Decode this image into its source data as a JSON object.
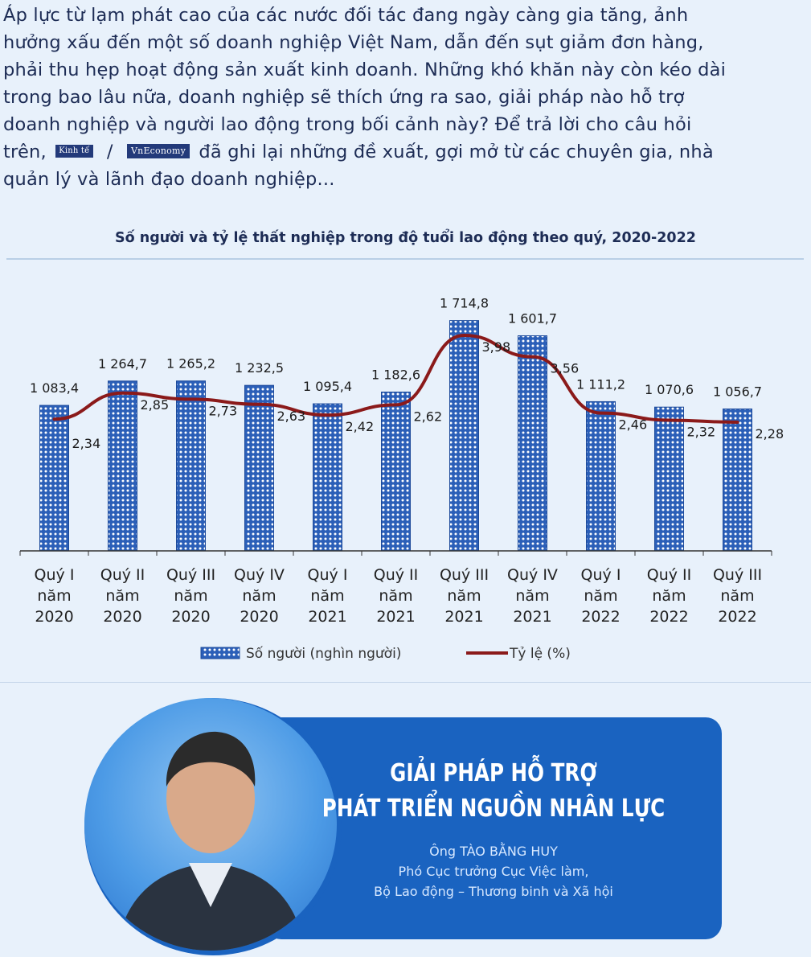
{
  "intro": {
    "line1": "Áp lực từ lạm phát cao của các nước đối tác đang ngày càng gia tăng, ảnh",
    "line2": "hưởng xấu đến một số doanh nghiệp Việt Nam, dẫn đến sụt giảm đơn hàng,",
    "line3": "phải thu hẹp hoạt động sản xuất kinh doanh. Những khó khăn này còn kéo dài",
    "line4": "trong bao lâu nữa, doanh nghiệp sẽ thích ứng ra sao, giải pháp nào hỗ trợ",
    "line5": "doanh nghiệp và người lao động trong bối cảnh này? Để trả lời cho câu hỏi",
    "line6_pre": "trên,",
    "badge_kt": "Kinh tế",
    "separator": "/",
    "badge_vne": "VnEconomy",
    "line6_post": "đã ghi lại những đề xuất, gợi mở từ các chuyên gia, nhà",
    "line7": "quản lý và lãnh đạo doanh nghiệp..."
  },
  "chart_data": {
    "type": "bar",
    "title": "Số người và tỷ lệ thất nghiệp trong độ tuổi lao động theo quý, 2020-2022",
    "categories": [
      [
        "Quý I",
        "năm",
        "2020"
      ],
      [
        "Quý II",
        "năm",
        "2020"
      ],
      [
        "Quý III",
        "năm",
        "2020"
      ],
      [
        "Quý IV",
        "năm",
        "2020"
      ],
      [
        "Quý I",
        "năm",
        "2021"
      ],
      [
        "Quý II",
        "năm",
        "2021"
      ],
      [
        "Quý III",
        "năm",
        "2021"
      ],
      [
        "Quý IV",
        "năm",
        "2021"
      ],
      [
        "Quý I",
        "năm",
        "2022"
      ],
      [
        "Quý II",
        "năm",
        "2022"
      ],
      [
        "Quý III",
        "năm",
        "2022"
      ]
    ],
    "series": [
      {
        "name": "Số người (nghìn người)",
        "type": "bar",
        "values": [
          1083.4,
          1264.7,
          1265.2,
          1232.5,
          1095.4,
          1182.6,
          1714.8,
          1601.7,
          1111.2,
          1070.6,
          1056.7
        ],
        "labels": [
          "1 083,4",
          "1 264,7",
          "1 265,2",
          "1 232,5",
          "1 095,4",
          "1 182,6",
          "1 714,8",
          "1 601,7",
          "1 111,2",
          "1 070,6",
          "1 056,7"
        ]
      },
      {
        "name": "Tỷ lệ (%)",
        "type": "line",
        "values": [
          2.34,
          2.85,
          2.73,
          2.63,
          2.42,
          2.62,
          3.98,
          3.56,
          2.46,
          2.32,
          2.28
        ],
        "labels": [
          "2,34",
          "2,85",
          "2,73",
          "2,63",
          "2,42",
          "2,62",
          "3,98",
          "3,56",
          "2,46",
          "2,32",
          "2,28"
        ]
      }
    ],
    "legend_position": "bottom",
    "grid": false,
    "colors": {
      "bar": "#2b5fb8",
      "bar_dot": "#ffffff",
      "line": "#8b1a1a",
      "axis": "#333333"
    }
  },
  "panel": {
    "heading_line1": "GIẢI PHÁP HỖ TRỢ",
    "heading_line2": "PHÁT TRIỂN NGUỒN NHÂN LỰC",
    "person_name": "Ông TÀO BẰNG HUY",
    "person_title1": "Phó Cục trưởng Cục Việc làm,",
    "person_title2": "Bộ Lao động – Thương binh và Xã hội"
  }
}
